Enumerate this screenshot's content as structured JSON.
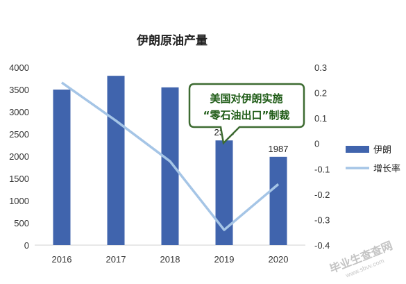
{
  "chart_data": {
    "type": "bar",
    "title": "伊朗原油产量",
    "categories": [
      "2016",
      "2017",
      "2018",
      "2019",
      "2020"
    ],
    "series": [
      {
        "name": "伊朗",
        "type": "bar",
        "axis": "left",
        "values": [
          3500,
          3810,
          3550,
          2356,
          1987
        ],
        "data_labels": [
          null,
          null,
          null,
          "2356",
          "1987"
        ]
      },
      {
        "name": "增长率",
        "type": "line",
        "axis": "right",
        "values": [
          0.24,
          0.09,
          -0.07,
          -0.34,
          -0.16
        ]
      }
    ],
    "ylim": [
      0,
      4000
    ],
    "y_ticks": [
      "0",
      "500",
      "1000",
      "1500",
      "2000",
      "2500",
      "3000",
      "3500",
      "4000"
    ],
    "y2lim": [
      -0.4,
      0.3
    ],
    "y2_ticks": [
      "0.3",
      "0.2",
      "0.1",
      "0",
      "-0.1",
      "-0.2",
      "-0.3",
      "-0.4"
    ],
    "grid": false,
    "legend_position": "right",
    "annotation": {
      "lines": [
        "美国对伊朗实施",
        "“零石油出口”制裁"
      ]
    },
    "colors": {
      "bar": "#4064ad",
      "line": "#a5c5e6",
      "callout_border": "#3d6b31",
      "callout_text": "#1e5b16"
    }
  },
  "watermark": {
    "text": "毕业生查查网",
    "subtext": "www.sbvv.com"
  }
}
